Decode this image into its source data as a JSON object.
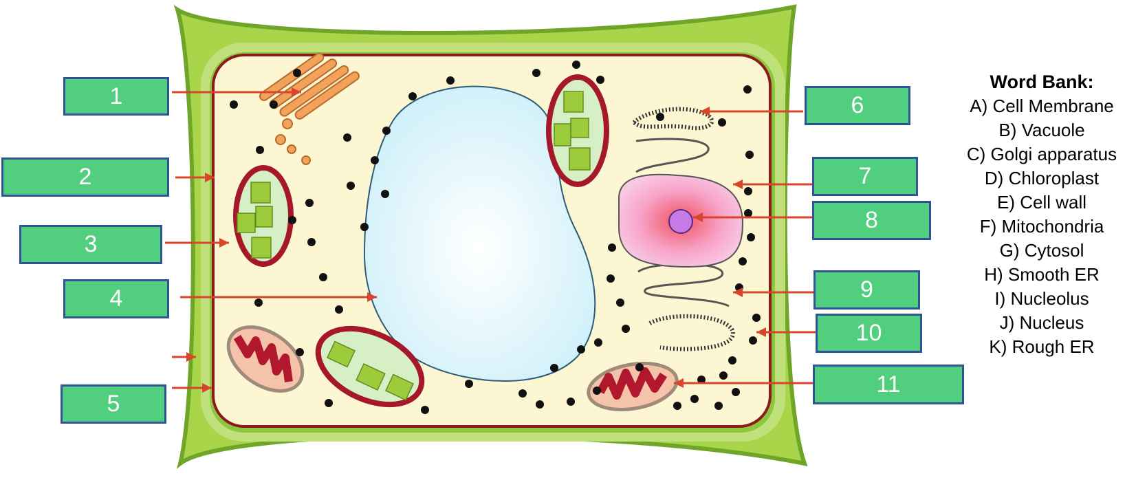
{
  "labels": [
    "1",
    "2",
    "3",
    "4",
    "5",
    "6",
    "7",
    "8",
    "9",
    "10",
    "11"
  ],
  "word_bank": {
    "title": "Word Bank:",
    "items": [
      "A) Cell Membrane",
      "B) Vacuole",
      "C) Golgi apparatus",
      "D) Chloroplast",
      "E) Cell wall",
      "F) Mitochondria",
      "G) Cytosol",
      "H) Smooth ER",
      "I) Nucleolus",
      "J) Nucleus",
      "K) Rough ER"
    ]
  },
  "colors": {
    "label_fill": "#51cf7e",
    "label_border": "#2f5597",
    "arrow": "#d9442c",
    "cell_wall": "#7dbb2c",
    "cytoplasm": "#fdf6d3",
    "membrane": "#8b1a1a",
    "vacuole": "#d8f3fb"
  },
  "icons": [
    "cell-wall-shape",
    "vacuole-shape",
    "nucleus-shape",
    "nucleolus-shape",
    "chloroplast-shape",
    "mitochondria-shape",
    "golgi-shape",
    "er-shape"
  ]
}
